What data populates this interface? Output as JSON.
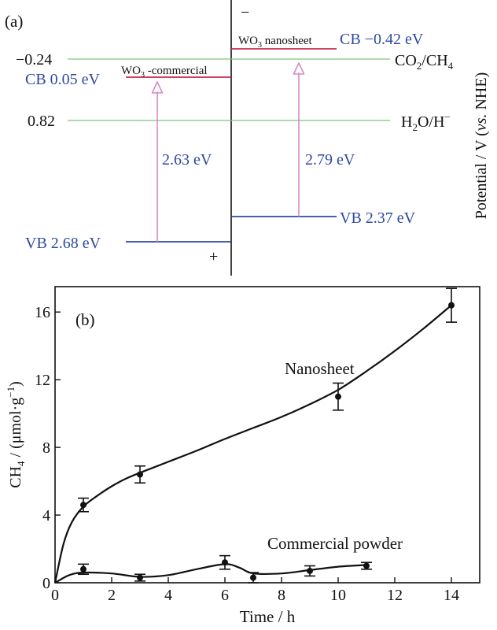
{
  "colors": {
    "blue": "#2E4A9E",
    "red": "#C8284A",
    "green": "#7CC47C",
    "pink": "#D58AC6",
    "black": "#111111"
  },
  "panel_a": {
    "label": "(a)",
    "y_axis_title": "Potential / V (vs. NHE)",
    "y_axis_title_parts": [
      "Potential / V (",
      "vs.",
      " NHE)"
    ],
    "negative_sign": "−",
    "positive_sign": "+",
    "potential_ticks": [
      {
        "label": "−0.24",
        "value": -0.24
      },
      {
        "label": "0.82",
        "value": 0.82
      }
    ],
    "references": [
      {
        "label": "CO2/CH4",
        "main": "CO",
        "sub1": "2",
        "mid": "/CH",
        "sub2": "4",
        "value": -0.24
      },
      {
        "label": "H2O/H−",
        "main": "H",
        "sub1": "2",
        "mid": "O/H",
        "sup": "−",
        "value": 0.82
      }
    ],
    "materials": [
      {
        "name": "WO3-commercial",
        "name_parts": [
          "WO",
          "3",
          " -commercial"
        ],
        "cb_label": "CB 0.05 eV",
        "cb": 0.05,
        "vb_label": "VB 2.68 eV",
        "vb": 2.68,
        "gap_label": "2.63 eV",
        "gap": 2.63
      },
      {
        "name": "WO3 nanosheet",
        "name_parts": [
          "WO",
          "3",
          " nanosheet"
        ],
        "cb_label": "CB −0.42 eV",
        "cb": -0.42,
        "vb_label": "VB 2.37 eV",
        "vb": 2.37,
        "gap_label": "2.79 eV",
        "gap": 2.79
      }
    ]
  },
  "chart_data": {
    "type": "line",
    "panel_label": "(b)",
    "xlabel": "Time / h",
    "ylabel": "CH4 / (μmol·g⁻¹)",
    "ylabel_parts": [
      "CH",
      "4",
      " / (μmol·g",
      "−1",
      ")"
    ],
    "xlim": [
      0,
      15
    ],
    "ylim": [
      0,
      17.5
    ],
    "xticks": [
      0,
      2,
      4,
      6,
      8,
      10,
      12,
      14
    ],
    "yticks": [
      0,
      4,
      8,
      12,
      16
    ],
    "grid": false,
    "series": [
      {
        "name": "Nanosheet",
        "x": [
          1,
          3,
          10,
          14
        ],
        "y": [
          4.6,
          6.4,
          11.0,
          16.4
        ],
        "err": [
          0.4,
          0.5,
          0.8,
          1.0
        ],
        "curve_x": [
          0,
          0.3,
          0.6,
          1,
          1.5,
          2,
          2.5,
          3,
          4,
          5,
          6,
          7,
          8,
          9,
          10,
          11,
          12,
          13,
          14
        ],
        "curve_y": [
          0,
          2.3,
          3.6,
          4.5,
          5.15,
          5.7,
          6.15,
          6.5,
          7.15,
          7.8,
          8.5,
          9.15,
          9.8,
          10.55,
          11.4,
          12.5,
          13.7,
          15.0,
          16.4
        ]
      },
      {
        "name": "Commercial powder",
        "x": [
          1,
          3,
          6,
          7,
          9,
          11
        ],
        "y": [
          0.8,
          0.3,
          1.2,
          0.3,
          0.7,
          1.0
        ],
        "err": [
          0.3,
          0.2,
          0.4,
          0.3,
          0.3,
          0.2
        ],
        "curve_x": [
          0,
          0.5,
          1,
          2,
          3,
          4,
          5,
          6,
          6.5,
          7,
          8,
          9,
          10,
          11
        ],
        "curve_y": [
          0,
          0.45,
          0.6,
          0.55,
          0.35,
          0.45,
          0.8,
          1.1,
          0.9,
          0.55,
          0.55,
          0.75,
          0.95,
          1.05
        ]
      }
    ]
  }
}
